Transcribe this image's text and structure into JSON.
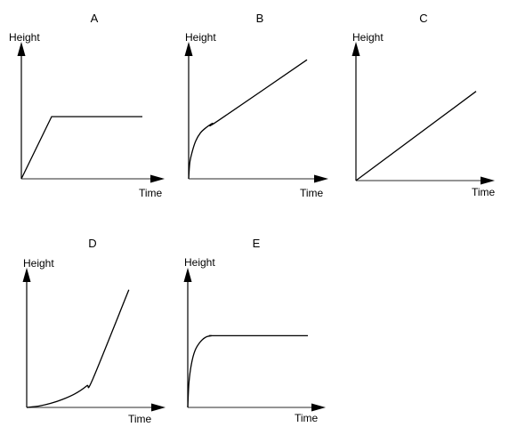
{
  "chart_data": [
    {
      "type": "line",
      "title": "A",
      "xlabel": "Time",
      "ylabel": "Height",
      "shape": "linear rise, then constant",
      "x": [
        0,
        0.25,
        1
      ],
      "y": [
        0,
        0.46,
        0.46
      ],
      "xlim": [
        0,
        1
      ],
      "ylim": [
        0,
        1
      ],
      "grid": false
    },
    {
      "type": "line",
      "title": "B",
      "xlabel": "Time",
      "ylabel": "Height",
      "shape": "steep curved rise, then steady linear rise",
      "x": [
        0,
        0.01,
        0.03,
        0.06,
        0.1,
        0.15,
        0.2,
        0.25,
        1
      ],
      "y": [
        0,
        0.12,
        0.2,
        0.28,
        0.34,
        0.38,
        0.41,
        0.43,
        0.88
      ],
      "xlim": [
        0,
        1
      ],
      "ylim": [
        0,
        1
      ],
      "grid": false
    },
    {
      "type": "line",
      "title": "C",
      "xlabel": "Time",
      "ylabel": "Height",
      "shape": "steady linear rise",
      "x": [
        0,
        1
      ],
      "y": [
        0,
        0.66
      ],
      "xlim": [
        0,
        1
      ],
      "ylim": [
        0,
        1
      ],
      "grid": false
    },
    {
      "type": "line",
      "title": "D",
      "xlabel": "Time",
      "ylabel": "Height",
      "shape": "slow curved rise, then steep linear rise",
      "x": [
        0,
        0.1,
        0.2,
        0.3,
        0.4,
        0.5,
        0.55,
        0.85
      ],
      "y": [
        0,
        0.01,
        0.03,
        0.06,
        0.1,
        0.16,
        0.21,
        0.87
      ],
      "xlim": [
        0,
        1
      ],
      "ylim": [
        0,
        1
      ],
      "grid": false
    },
    {
      "type": "line",
      "title": "E",
      "xlabel": "Time",
      "ylabel": "Height",
      "shape": "steep curved rise, then constant",
      "x": [
        0,
        0.01,
        0.03,
        0.06,
        0.1,
        0.15,
        0.2,
        0.25,
        1
      ],
      "y": [
        0,
        0.18,
        0.32,
        0.42,
        0.48,
        0.52,
        0.53,
        0.53,
        0.53
      ],
      "xlim": [
        0,
        1
      ],
      "ylim": [
        0,
        1
      ],
      "grid": false
    }
  ]
}
